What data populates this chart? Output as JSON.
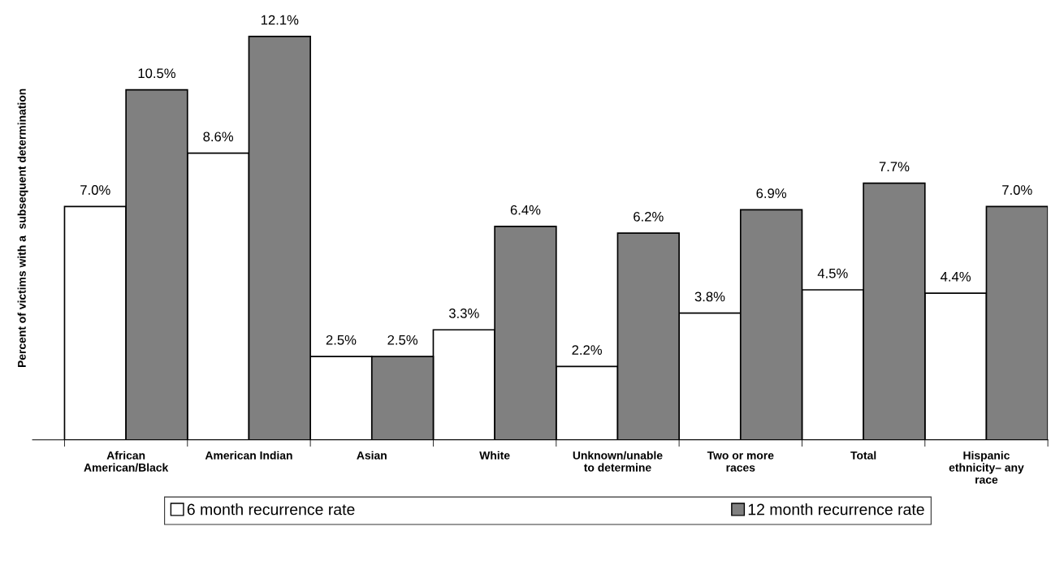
{
  "chart_data": {
    "type": "bar",
    "ylabel": "Percent of victims with a  subsequent determination",
    "categories": [
      "African\nAmerican/Black",
      "American Indian",
      "Asian",
      "White",
      "Unknown/unable\nto determine",
      "Two or more\nraces",
      "Total",
      "Hispanic\nethnicity– any\nrace"
    ],
    "series": [
      {
        "name": "6 month recurrence rate",
        "color": "#ffffff",
        "values": [
          7.0,
          8.6,
          2.5,
          3.3,
          2.2,
          3.8,
          4.5,
          4.4
        ],
        "value_labels": [
          "7.0%",
          "8.6%",
          "2.5%",
          "3.3%",
          "2.2%",
          "3.8%",
          "4.5%",
          "4.4%"
        ]
      },
      {
        "name": "12 month recurrence rate",
        "color": "#808080",
        "values": [
          10.5,
          12.1,
          2.5,
          6.4,
          6.2,
          6.9,
          7.7,
          7.0
        ],
        "value_labels": [
          "10.5%",
          "12.1%",
          "2.5%",
          "6.4%",
          "6.2%",
          "6.9%",
          "7.7%",
          "7.0%"
        ]
      }
    ],
    "legend": "bottom",
    "grid": false
  }
}
